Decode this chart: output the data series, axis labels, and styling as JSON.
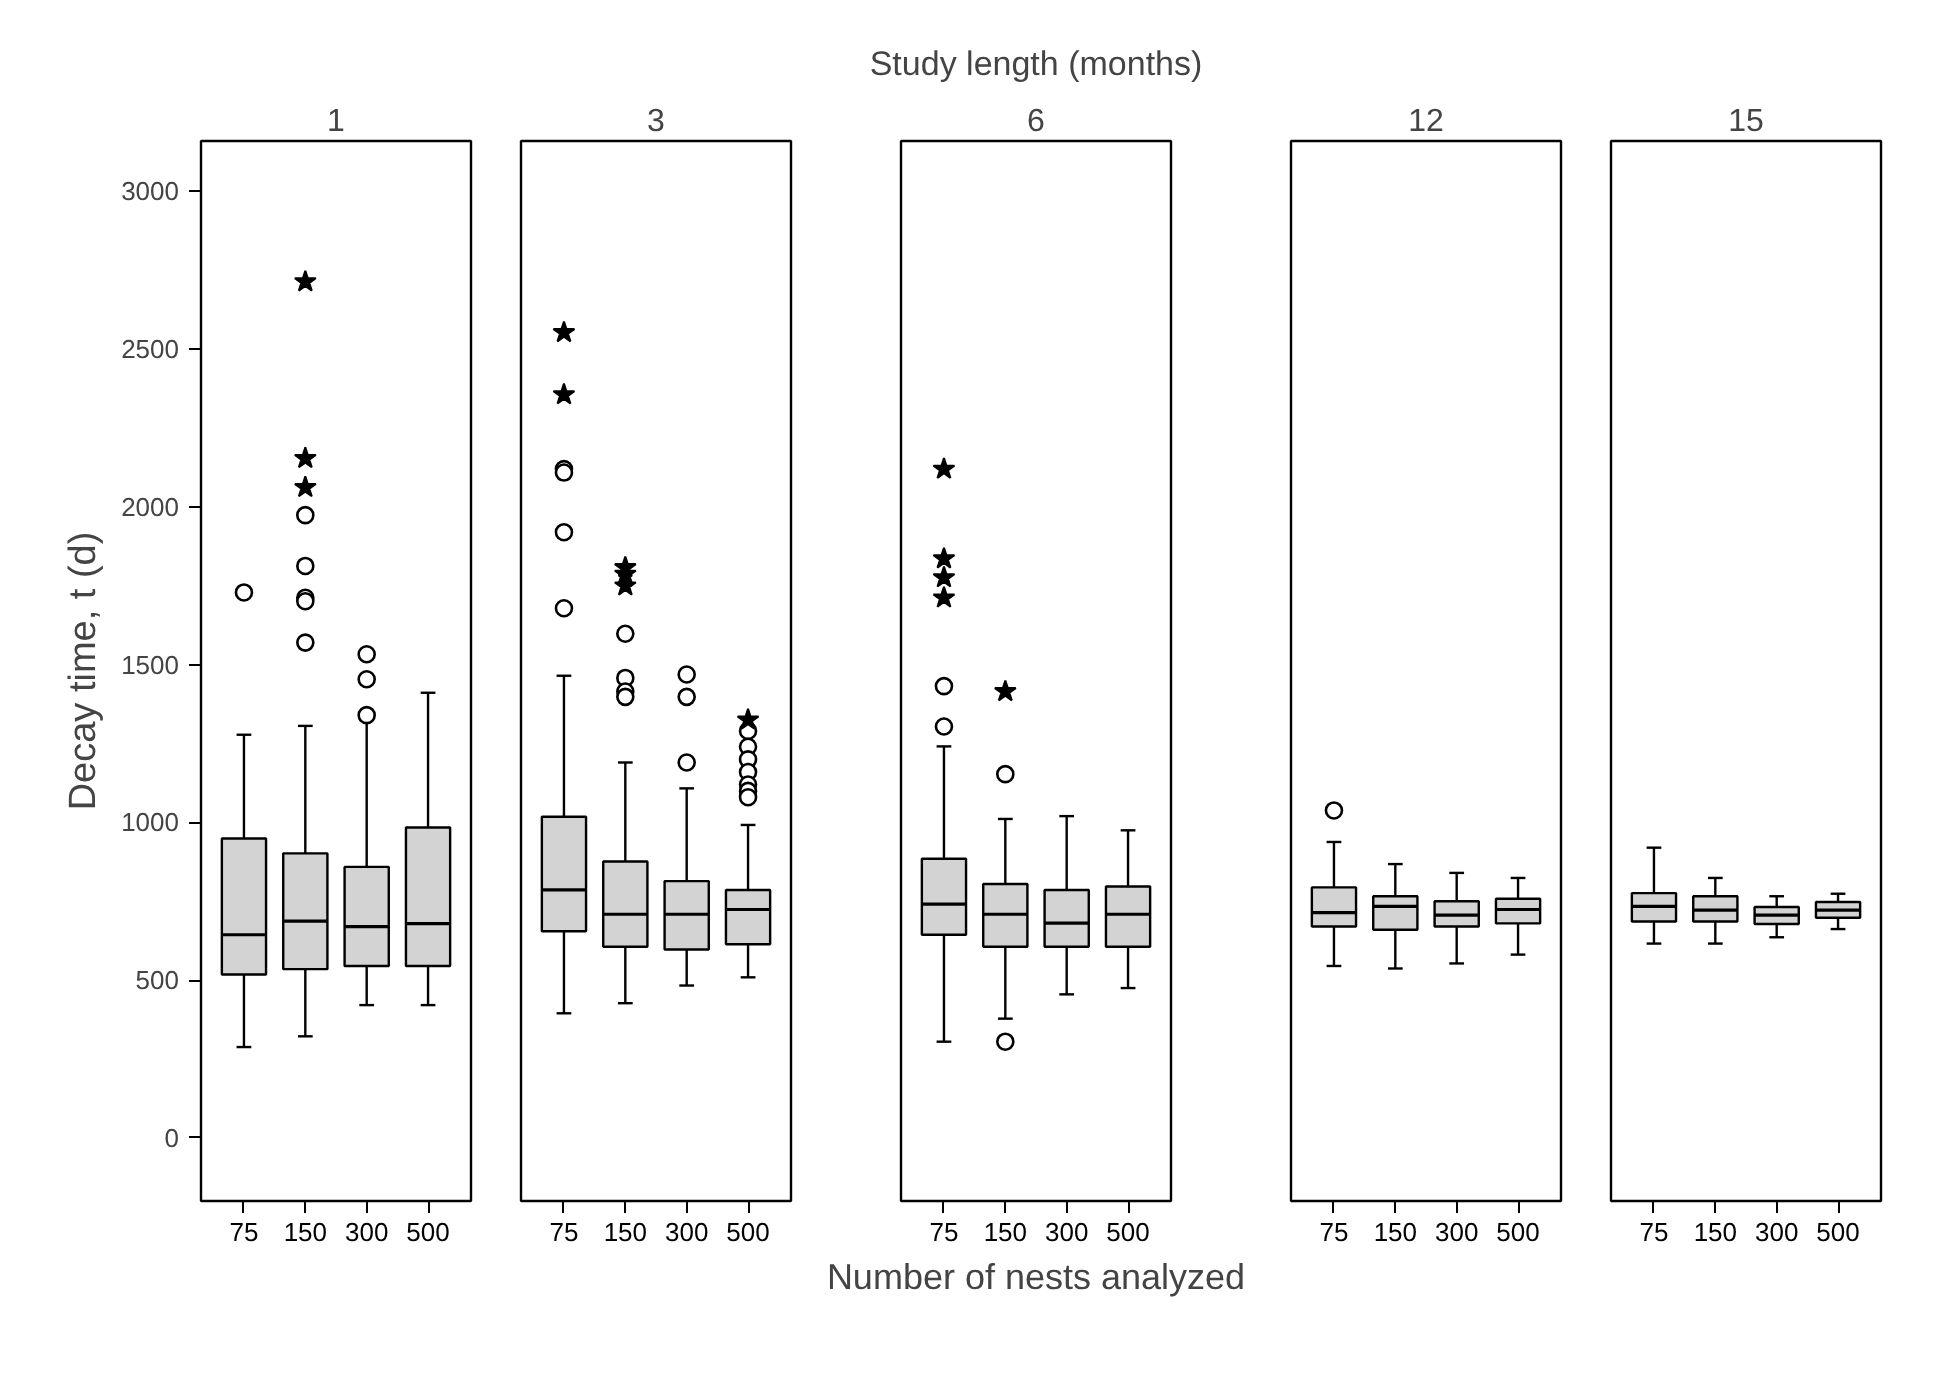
{
  "chart_data": [
    {
      "type": "box",
      "title": "1",
      "ylabel": "Decay time, t (d)",
      "categories": [
        "75",
        "150",
        "300",
        "500"
      ],
      "ylim": [
        -200,
        3160
      ],
      "yticks": [
        0,
        500,
        1000,
        1500,
        2000,
        2500,
        3000
      ],
      "grid": false,
      "color": "#d3d3d3",
      "boxes": [
        {
          "low": 288,
          "q1": 518,
          "median": 644,
          "q3": 949,
          "high": 1278,
          "outliers": [
            1729
          ]
        },
        {
          "low": 322,
          "q1": 535,
          "median": 687,
          "q3": 902,
          "high": 1306,
          "outliers": [
            1974,
            1813,
            1712,
            1701,
            1570
          ]
        },
        {
          "low": 421,
          "q1": 545,
          "median": 670,
          "q3": 859,
          "high": 1325,
          "outliers": [
            1533,
            1454,
            1340
          ]
        },
        {
          "low": 421,
          "q1": 545,
          "median": 679,
          "q3": 984,
          "high": 1411
        }
      ],
      "series": [
        {
          "type": "scatter",
          "marker": "star",
          "color": "#000000",
          "x": [
            "150",
            "150",
            "150"
          ],
          "values": [
            2714,
            2154,
            2062
          ]
        }
      ]
    },
    {
      "type": "box",
      "title": "3",
      "categories": [
        "75",
        "150",
        "300",
        "500"
      ],
      "ylim": [
        -200,
        3160
      ],
      "tick_labels": "x",
      "grid": false,
      "color": "#d3d3d3",
      "boxes": [
        {
          "low": 395,
          "q1": 655,
          "median": 786,
          "q3": 1018,
          "high": 1465,
          "outliers": [
            2120,
            2109,
            1920,
            1679
          ]
        },
        {
          "low": 427,
          "q1": 606,
          "median": 709,
          "q3": 876,
          "high": 1190,
          "outliers": [
            1598,
            1458,
            1415,
            1398
          ]
        },
        {
          "low": 483,
          "q1": 597,
          "median": 709,
          "q3": 814,
          "high": 1108,
          "outliers": [
            1469,
            1398,
            1190
          ]
        },
        {
          "low": 509,
          "q1": 614,
          "median": 724,
          "q3": 786,
          "high": 992,
          "outliers": [
            1290,
            1240,
            1200,
            1160,
            1120,
            1100,
            1080
          ]
        }
      ],
      "series": [
        {
          "type": "scatter",
          "marker": "star",
          "color": "#000000",
          "x": [
            "75",
            "75",
            "150",
            "150",
            "150",
            "500"
          ],
          "values": [
            2553,
            2356,
            1808,
            1787,
            1750,
            1325
          ]
        }
      ]
    },
    {
      "type": "box",
      "title": "6",
      "subtitle": "Study length (months)",
      "xlabel": "Number of nests analyzed",
      "categories": [
        "75",
        "150",
        "300",
        "500"
      ],
      "ylim": [
        -200,
        3160
      ],
      "tick_labels": "x",
      "grid": false,
      "color": "#d3d3d3",
      "boxes": [
        {
          "low": 305,
          "q1": 644,
          "median": 741,
          "q3": 885,
          "high": 1241,
          "outliers": [
            1432,
            1304
          ]
        },
        {
          "low": 378,
          "q1": 606,
          "median": 709,
          "q3": 805,
          "high": 1011,
          "outliers": [
            1153,
            305
          ]
        },
        {
          "low": 455,
          "q1": 606,
          "median": 681,
          "q3": 786,
          "high": 1020
        },
        {
          "low": 475,
          "q1": 606,
          "median": 709,
          "q3": 797,
          "high": 975
        }
      ],
      "series": [
        {
          "type": "scatter",
          "marker": "star",
          "color": "#000000",
          "x": [
            "75",
            "75",
            "75",
            "75",
            "150"
          ],
          "values": [
            2120,
            1836,
            1776,
            1712,
            1415
          ]
        }
      ]
    },
    {
      "type": "box",
      "title": "12",
      "categories": [
        "75",
        "150",
        "300",
        "500"
      ],
      "ylim": [
        -200,
        3160
      ],
      "tick_labels": "x",
      "grid": false,
      "color": "#d3d3d3",
      "boxes": [
        {
          "low": 545,
          "q1": 670,
          "median": 714,
          "q3": 794,
          "high": 938,
          "outliers": [
            1038
          ]
        },
        {
          "low": 537,
          "q1": 660,
          "median": 734,
          "q3": 766,
          "high": 868
        },
        {
          "low": 553,
          "q1": 670,
          "median": 706,
          "q3": 750,
          "high": 840
        },
        {
          "low": 581,
          "q1": 680,
          "median": 724,
          "q3": 758,
          "high": 824
        }
      ]
    },
    {
      "type": "box",
      "title": "15",
      "categories": [
        "75",
        "150",
        "300",
        "500"
      ],
      "ylim": [
        -200,
        3160
      ],
      "tick_labels": "x",
      "grid": false,
      "color": "#d3d3d3",
      "boxes": [
        {
          "low": 616,
          "q1": 686,
          "median": 734,
          "q3": 776,
          "high": 920
        },
        {
          "low": 616,
          "q1": 686,
          "median": 722,
          "q3": 766,
          "high": 824
        },
        {
          "low": 636,
          "q1": 678,
          "median": 706,
          "q3": 732,
          "high": 766
        },
        {
          "low": 662,
          "q1": 698,
          "median": 722,
          "q3": 748,
          "high": 774
        }
      ]
    }
  ]
}
